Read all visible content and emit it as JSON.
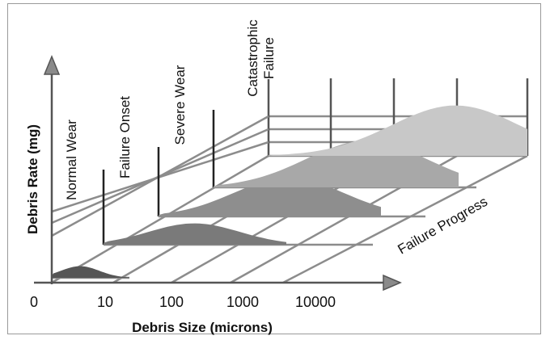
{
  "chart_data": {
    "type": "area",
    "title": "",
    "xlabel": "Debris Size (microns)",
    "ylabel": "Debris Rate (mg)",
    "zlabel": "Failure Progress",
    "x_ticks": [
      "0",
      "10",
      "100",
      "1000",
      "10000"
    ],
    "stages": [
      "Normal Wear",
      "Failure Onset",
      "Severe Wear",
      "Catastrophic Failure"
    ],
    "series": [
      {
        "name": "",
        "peak_debris_size_log10": 0.5,
        "relative_debris_rate": 0.12,
        "color": "#555555"
      },
      {
        "name": "",
        "peak_debris_size_log10": 1.6,
        "relative_debris_rate": 0.22,
        "color": "#7a7a7a"
      },
      {
        "name": "",
        "peak_debris_size_log10": 2.3,
        "relative_debris_rate": 0.4,
        "color": "#8e8e8e"
      },
      {
        "name": "",
        "peak_debris_size_log10": 2.7,
        "relative_debris_rate": 0.48,
        "color": "#a8a8a8"
      },
      {
        "name": "",
        "peak_debris_size_log10": 3.3,
        "relative_debris_rate": 0.52,
        "color": "#c8c8c8"
      }
    ],
    "grid": true,
    "colors": {
      "grid": "#8c8c8c",
      "axis": "#555555",
      "frame": "#9a9a9a"
    }
  }
}
